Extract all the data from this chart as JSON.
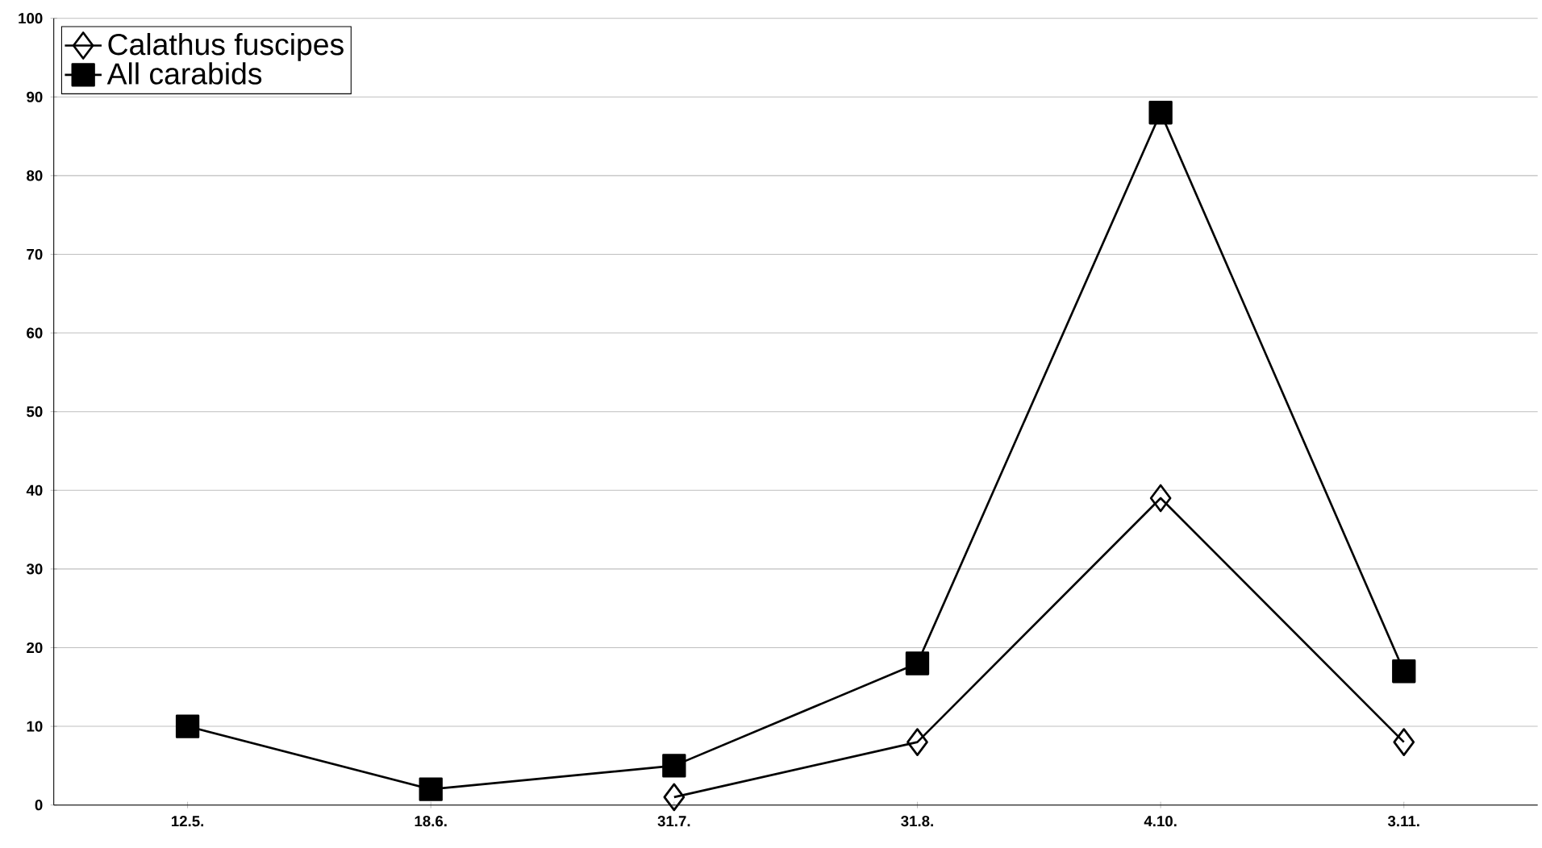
{
  "chart_data": {
    "type": "line",
    "categories": [
      "12.5.",
      "18.6.",
      "31.7.",
      "31.8.",
      "4.10.",
      "3.11."
    ],
    "series": [
      {
        "name": "Calathus fuscipes",
        "color": "#000000",
        "marker": "diamond",
        "values": [
          null,
          null,
          1,
          8,
          39,
          8
        ]
      },
      {
        "name": "All carabids",
        "color": "#000000",
        "marker": "square",
        "values": [
          10,
          2,
          5,
          18,
          88,
          17
        ]
      }
    ],
    "ylim": [
      0,
      100
    ],
    "yticks": [
      0,
      10,
      20,
      30,
      40,
      50,
      60,
      70,
      80,
      90,
      100
    ],
    "grid": "y",
    "legend": "top left",
    "line_style": "solid"
  }
}
